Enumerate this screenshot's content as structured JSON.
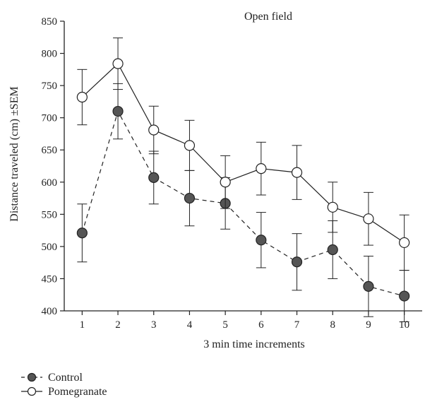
{
  "chart_data": {
    "type": "line",
    "title": "Open field",
    "xlabel": "3 min time increments",
    "ylabel": "Distance traveled (cm) ±SEM",
    "x": [
      1,
      2,
      3,
      4,
      5,
      6,
      7,
      8,
      9,
      10
    ],
    "xlim": [
      0.5,
      10.5
    ],
    "ylim": [
      400,
      850
    ],
    "yticks": [
      400,
      450,
      500,
      550,
      600,
      650,
      700,
      750,
      800,
      850
    ],
    "grid": false,
    "legend_position": "bottom-left",
    "series": [
      {
        "name": "Control",
        "line_style": "dashed",
        "marker_color": "#555555",
        "values": [
          521,
          710,
          607,
          575,
          567,
          510,
          476,
          495,
          438,
          423
        ],
        "error": [
          45,
          43,
          41,
          43,
          40,
          43,
          44,
          45,
          47,
          40
        ]
      },
      {
        "name": "Pomegranate",
        "line_style": "solid",
        "marker_color": "#ffffff",
        "values": [
          732,
          784,
          681,
          657,
          600,
          621,
          615,
          561,
          543,
          506
        ],
        "error": [
          43,
          40,
          37,
          39,
          41,
          41,
          42,
          39,
          41,
          43
        ]
      }
    ]
  }
}
